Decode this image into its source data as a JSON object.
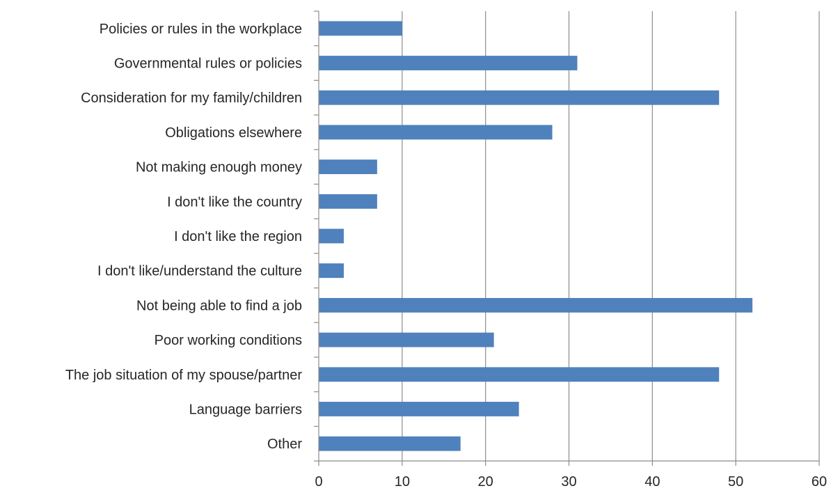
{
  "chart_data": {
    "type": "bar",
    "orientation": "horizontal",
    "categories": [
      "Policies or rules in the workplace",
      "Governmental rules or policies",
      "Consideration for my family/children",
      "Obligations elsewhere",
      "Not making enough money",
      "I don't like the country",
      "I don't like the region",
      "I don't like/understand the culture",
      "Not being able to find a job",
      "Poor working conditions",
      "The job situation of my spouse/partner",
      "Language barriers",
      "Other"
    ],
    "values": [
      10,
      31,
      48,
      28,
      7,
      7,
      3,
      3,
      52,
      21,
      48,
      24,
      17
    ],
    "xlim": [
      0,
      60
    ],
    "xticks": [
      "0",
      "10",
      "20",
      "30",
      "40",
      "50",
      "60"
    ],
    "grid": true,
    "legend": "none",
    "bar_color": "#4f81bd"
  }
}
